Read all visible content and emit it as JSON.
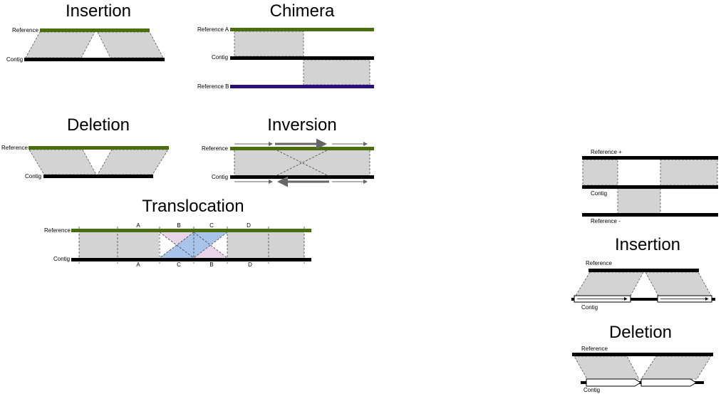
{
  "insertion": {
    "title": "Insertion",
    "ref_label": "Reference",
    "contig_label": "Contig"
  },
  "chimera": {
    "title": "Chimera",
    "ref_a_label": "Reference A",
    "contig_label": "Contig",
    "ref_b_label": "Reference B"
  },
  "deletion": {
    "title": "Deletion",
    "ref_label": "Reference",
    "contig_label": "Contig"
  },
  "inversion": {
    "title": "Inversion",
    "ref_label": "Reference",
    "contig_label": "Contig"
  },
  "translocation": {
    "title": "Translocation",
    "ref_label": "Reference",
    "contig_label": "Contig",
    "ref_segments": [
      "A",
      "B",
      "C",
      "D"
    ],
    "contig_segments": [
      "A",
      "C",
      "B",
      "D"
    ]
  },
  "strand_panel": {
    "ref_plus_label": "Reference +",
    "contig_label": "Contig",
    "ref_minus_label": "Reference -"
  },
  "insertion2": {
    "title": "Insertion",
    "ref_label": "Reference",
    "contig_label": "Contig"
  },
  "deletion2": {
    "title": "Deletion",
    "ref_label": "Reference",
    "contig_label": "Contig"
  },
  "colors": {
    "reference": "#4a6e0c",
    "contig": "#000000",
    "reference_b": "#2c0f7a",
    "aligned_block": "#d3d3d3",
    "translocation_blue": "#a8c4ea",
    "translocation_pink": "#e8d3e8"
  }
}
